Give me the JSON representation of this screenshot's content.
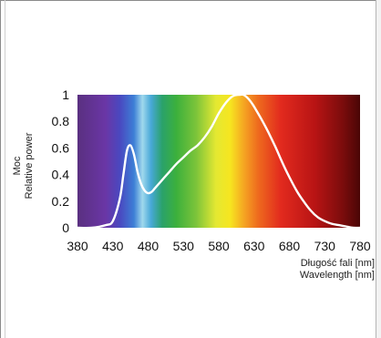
{
  "chart_data": {
    "type": "line",
    "title": "",
    "ylabel": [
      "Moc",
      "Relative power"
    ],
    "xlabel": [
      "Długość fali [nm]",
      "Wavelength [nm]"
    ],
    "xlim": [
      380,
      780
    ],
    "ylim": [
      0,
      1
    ],
    "x_ticks": [
      380,
      430,
      480,
      530,
      580,
      630,
      680,
      730,
      780
    ],
    "y_ticks": [
      0,
      0.2,
      0.4,
      0.6,
      0.8,
      1
    ],
    "y_tick_labels": [
      "0",
      "0.2",
      "0.4",
      "0.6",
      "0.8",
      "1"
    ],
    "background": "visible-spectrum-gradient",
    "series": [
      {
        "color": "#ffffff",
        "x": [
          380,
          400,
          420,
          430,
          440,
          445,
          450,
          455,
          460,
          465,
          470,
          475,
          480,
          485,
          490,
          500,
          510,
          520,
          530,
          540,
          550,
          560,
          570,
          580,
          590,
          600,
          610,
          615,
          620,
          625,
          630,
          640,
          650,
          660,
          670,
          680,
          690,
          700,
          710,
          720,
          730,
          740,
          750,
          760,
          770,
          780
        ],
        "y": [
          0.0,
          0.0,
          0.02,
          0.05,
          0.22,
          0.4,
          0.58,
          0.62,
          0.55,
          0.42,
          0.33,
          0.28,
          0.26,
          0.27,
          0.3,
          0.36,
          0.42,
          0.48,
          0.53,
          0.58,
          0.62,
          0.68,
          0.76,
          0.86,
          0.94,
          0.99,
          1.0,
          1.0,
          0.98,
          0.95,
          0.91,
          0.82,
          0.72,
          0.61,
          0.49,
          0.38,
          0.28,
          0.2,
          0.13,
          0.08,
          0.05,
          0.03,
          0.02,
          0.01,
          0.0,
          0.0
        ]
      }
    ]
  }
}
